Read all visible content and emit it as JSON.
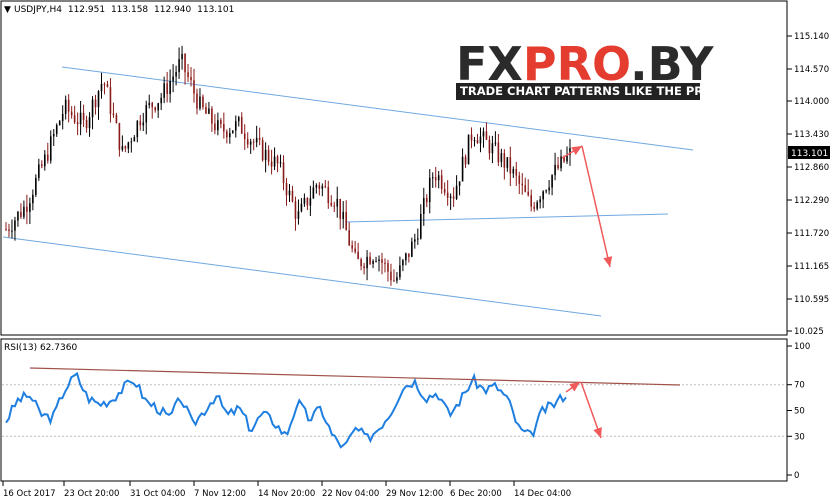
{
  "symbol_info": {
    "symbol": "USDJPY,H4",
    "open": "112.951",
    "high": "113.158",
    "low": "112.940",
    "close": "113.101"
  },
  "logo": {
    "title": "FXPRO.BY",
    "tagline": "TRADE CHART PATTERNS LIKE THE PROS"
  },
  "chart_data": [
    {
      "type": "candlestick",
      "title": "USDJPY,H4",
      "ylim": [
        10.025,
        115.14
      ],
      "y_ticks": [
        "115.140",
        "114.570",
        "114.000",
        "113.430",
        "112.860",
        "112.290",
        "111.720",
        "111.165",
        "110.595",
        "10.025"
      ],
      "current_price": "113.101",
      "x_ticks": [
        "16 Oct 2017",
        "23 Oct 20:00",
        "31 Oct 04:00",
        "7 Nov 12:00",
        "14 Nov 20:00",
        "22 Nov 04:00",
        "29 Nov 12:00",
        "6 Dec 20:00",
        "14 Dec 04:00"
      ],
      "approx_price_path": [
        111.8,
        112.2,
        113.0,
        113.9,
        113.6,
        114.4,
        113.1,
        113.8,
        114.1,
        114.7,
        113.9,
        113.5,
        113.6,
        113.2,
        112.9,
        112.0,
        112.6,
        112.3,
        111.2,
        111.4,
        110.9,
        111.6,
        112.8,
        112.4,
        113.5,
        113.2,
        112.8,
        112.2,
        112.7,
        113.1
      ],
      "lines": [
        {
          "name": "upper-channel",
          "from": [
            "16 Oct 2017",
            114.6
          ],
          "to": [
            "end",
            113.2
          ]
        },
        {
          "name": "lower-channel",
          "from": [
            "16 Oct 2017",
            111.7
          ],
          "to": [
            "end",
            110.4
          ]
        },
        {
          "name": "support",
          "from": [
            "22 Nov 04:00",
            111.9
          ],
          "to": [
            "end",
            112.05
          ]
        }
      ],
      "forecast_arrows": [
        {
          "from": 113.1,
          "to": 113.2,
          "direction": "up"
        },
        {
          "from": 113.2,
          "to": 111.2,
          "direction": "down"
        }
      ],
      "colors": {
        "bull": "#000000",
        "bear": "#8b1a1a",
        "channel": "#6fa8e0",
        "arrow": "#f05a5a"
      }
    },
    {
      "type": "line",
      "title": "RSI(13) 62.7360",
      "ylim": [
        0,
        100
      ],
      "y_ticks": [
        "100",
        "70",
        "50",
        "30",
        "0"
      ],
      "values": [
        42,
        58,
        62,
        47,
        44,
        66,
        78,
        60,
        55,
        58,
        67,
        74,
        57,
        52,
        44,
        60,
        39,
        50,
        62,
        46,
        52,
        35,
        48,
        41,
        30,
        57,
        43,
        52,
        30,
        21,
        36,
        28,
        37,
        49,
        68,
        73,
        60,
        64,
        46,
        59,
        74,
        66,
        69,
        59,
        35,
        30,
        50,
        55,
        63
      ],
      "lines": [
        {
          "name": "rsi-resistance",
          "from": 72,
          "to": 67
        }
      ],
      "colors": {
        "line": "#1f7fe0",
        "trendline": "#a0524a",
        "arrow": "#f05a5a"
      }
    }
  ]
}
